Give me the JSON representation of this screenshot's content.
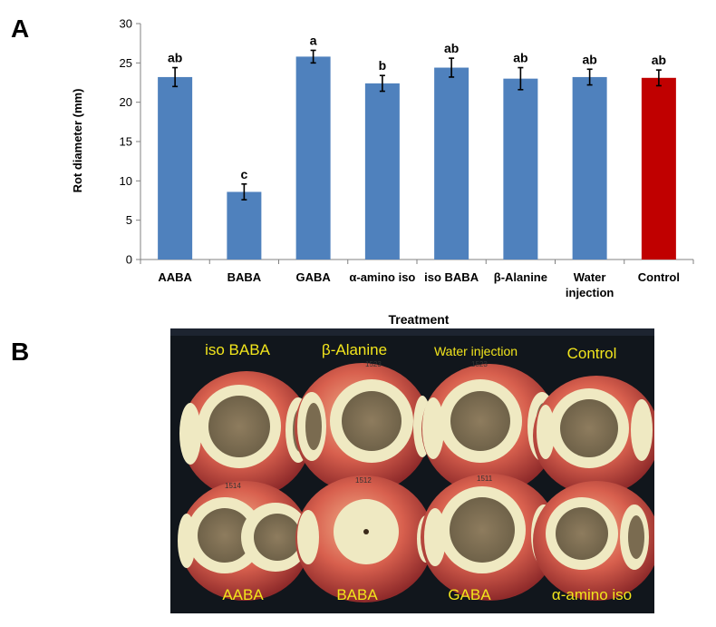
{
  "panel_a_letter": "A",
  "panel_b_letter": "B",
  "chart_data": {
    "type": "bar",
    "title": "",
    "xlabel": "Treatment",
    "ylabel": "Rot diameter (mm)",
    "ylim": [
      0,
      30
    ],
    "yticks": [
      0,
      5,
      10,
      15,
      20,
      25,
      30
    ],
    "grid": false,
    "categories": [
      [
        "AABA"
      ],
      [
        "BABA"
      ],
      [
        "GABA"
      ],
      [
        "α-amino iso"
      ],
      [
        "iso BABA"
      ],
      [
        "β-Alanine"
      ],
      [
        "Water",
        "injection"
      ],
      [
        "Control"
      ]
    ],
    "values": [
      23.2,
      8.6,
      25.8,
      22.4,
      24.4,
      23.0,
      23.2,
      23.1
    ],
    "errors": [
      1.2,
      1.0,
      0.8,
      1.0,
      1.2,
      1.4,
      1.0,
      1.0
    ],
    "letters": [
      "ab",
      "c",
      "a",
      "b",
      "ab",
      "ab",
      "ab",
      "ab"
    ],
    "colors": [
      "#4f81bd",
      "#4f81bd",
      "#4f81bd",
      "#4f81bd",
      "#4f81bd",
      "#4f81bd",
      "#4f81bd",
      "#c00000"
    ]
  },
  "photo": {
    "top_labels": [
      "iso BABA",
      "β-Alanine",
      "Water injection",
      "Control"
    ],
    "bottom_labels": [
      "AABA",
      "BABA",
      "GABA",
      "α-amino iso"
    ],
    "label_color": "#f2e51c",
    "apple_markings": [
      "1523",
      "1514",
      "1512",
      "1511"
    ]
  }
}
